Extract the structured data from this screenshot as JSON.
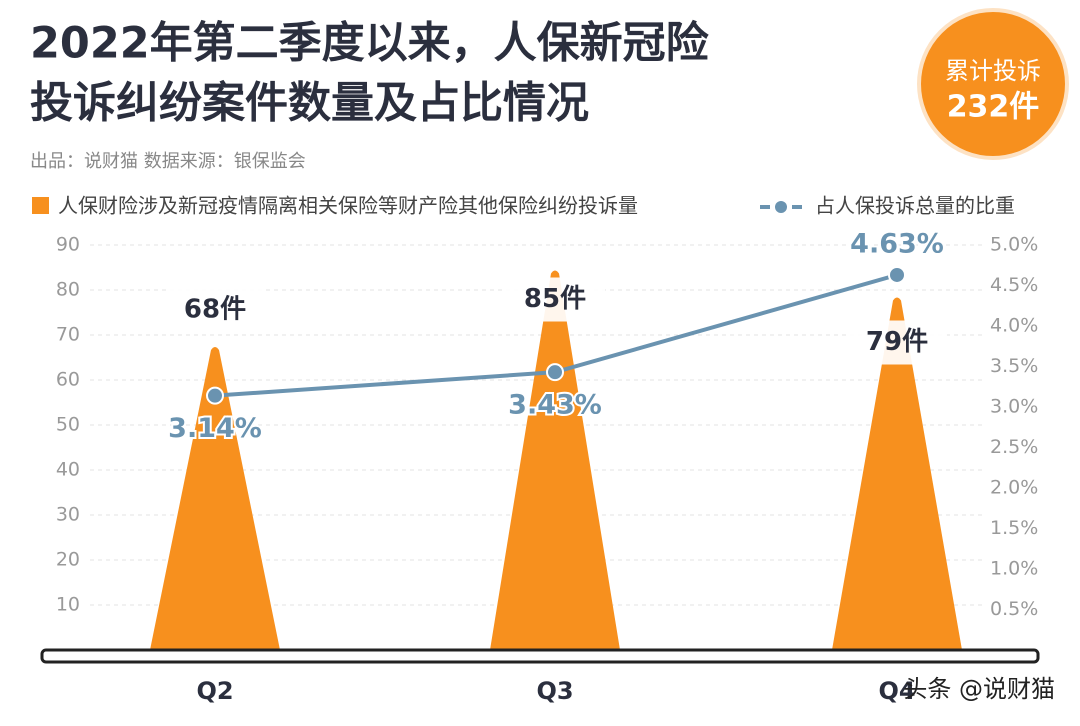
{
  "chart_data": {
    "type": "bar-line",
    "title_lines": [
      "2022年第二季度以来，人保新冠险",
      "投诉纠纷案件数量及占比情况"
    ],
    "subtitle": "出品：说财猫   数据来源：银保监会",
    "badge": [
      "累计投诉",
      "232件"
    ],
    "watermark": "头条 @说财猫",
    "categories": [
      "Q2",
      "Q3",
      "Q4"
    ],
    "series": [
      {
        "name": "人保财险涉及新冠疫情隔离相关保险等财产险其他保险纠纷投诉量",
        "color": "#f7901e",
        "values": [
          68,
          85,
          79
        ],
        "value_labels": [
          "68件",
          "85件",
          "79件"
        ]
      },
      {
        "name": "占人保投诉总量的比重",
        "color": "#6a93b0",
        "axis": "y2",
        "values": [
          3.14,
          3.43,
          4.63
        ],
        "value_labels": [
          "3.14%",
          "3.43%",
          "4.63%"
        ]
      }
    ],
    "ylim": [
      0,
      90
    ],
    "yticks": [
      10,
      20,
      30,
      40,
      50,
      60,
      70,
      80,
      90
    ],
    "y2lim": [
      0,
      5
    ],
    "y2ticks": [
      {
        "value": 0.5,
        "label": "0.5%"
      },
      {
        "value": 1,
        "label": "1.0%"
      },
      {
        "value": 1.5,
        "label": "1.5%"
      },
      {
        "value": 2,
        "label": "2.0%"
      },
      {
        "value": 2.5,
        "label": "2.5%"
      },
      {
        "value": 3,
        "label": "3.0%"
      },
      {
        "value": 3.5,
        "label": "3.5%"
      },
      {
        "value": 4,
        "label": "4.0%"
      },
      {
        "value": 4.5,
        "label": "4.5%"
      },
      {
        "value": 5,
        "label": "5.0%"
      }
    ],
    "grid": true
  }
}
